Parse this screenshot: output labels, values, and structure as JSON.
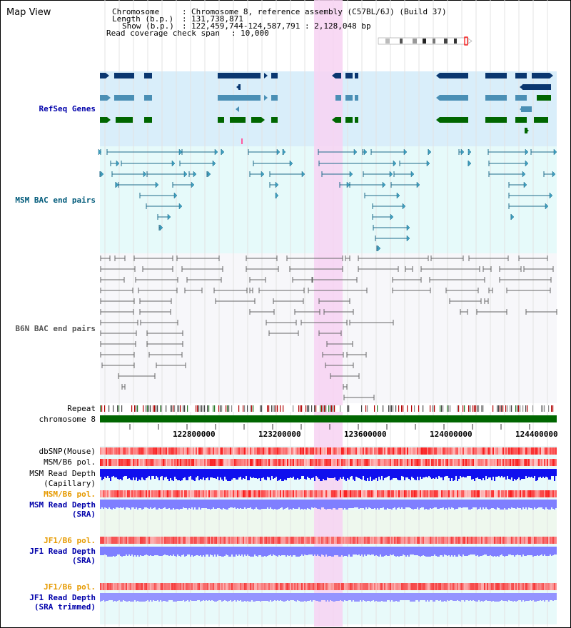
{
  "title": "Map View",
  "header": {
    "chromosome_label": "Chromosome",
    "chromosome_value": "Chromosome 8, reference assembly (C57BL/6J) (Build 37)",
    "length_label": "Length (b.p.)",
    "length_value": "131,738,871",
    "show_label": "Show (b.p.)",
    "show_value": "122,459,744-124,587,791 : 2,128,048 bp",
    "span_label": "Read coverage check span",
    "span_value": "10,000"
  },
  "tracks": {
    "refseq": "RefSeq Genes",
    "msm_bac": "MSM BAC end pairs",
    "b6n_bac": "B6N BAC end pairs",
    "repeat": "Repeat",
    "chromosome": "chromosome 8",
    "dbsnp": "dbSNP(Mouse)",
    "msm_b6_pol_1": "MSM/B6 pol.",
    "msm_depth_cap_1": "MSM Read Depth",
    "msm_depth_cap_2": "(Capillary)",
    "msm_b6_pol_2": "MSM/B6 pol.",
    "msm_depth_sra_1": "MSM Read Depth",
    "msm_depth_sra_2": "(SRA)",
    "jf1_b6_pol_1": "JF1/B6 pol.",
    "jf1_depth_sra_1": "JF1 Read Depth",
    "jf1_depth_sra_2": "(SRA)",
    "jf1_b6_pol_2": "JF1/B6 pol.",
    "jf1_depth_trim_1": "JF1 Read Depth",
    "jf1_depth_trim_2": "(SRA trimmed)"
  },
  "axis": {
    "ticks": [
      "122800000",
      "123200000",
      "123600000",
      "124000000",
      "124400000"
    ]
  },
  "colors": {
    "refseq_bg": "#d9eefa",
    "bac_bg": "#e6fafa",
    "highlight": "#f7d2f2",
    "chromosome_bar": "#006600",
    "refseq_dark": "#0a3770",
    "refseq_mid": "#4a8fb5",
    "refseq_green": "#006600",
    "msm_line": "#1d6a8a",
    "b6n_line": "#666666",
    "snp_red": "#ff5a5a",
    "depth_capillary": "#1010ee",
    "depth_sra": "#7f7fff"
  }
}
